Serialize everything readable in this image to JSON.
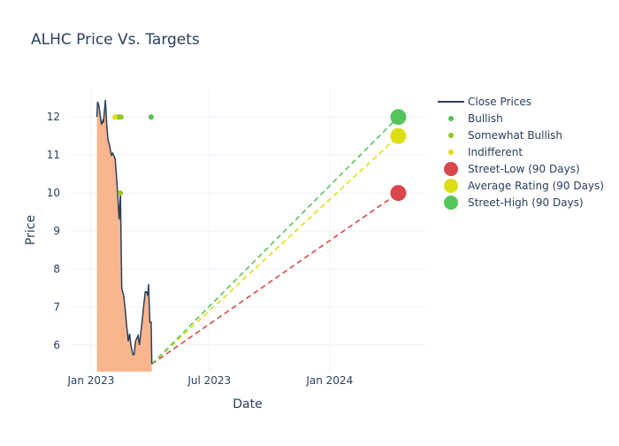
{
  "chart_data": {
    "type": "line",
    "title": "ALHC Price Vs. Targets",
    "xlabel": "Date",
    "ylabel": "Price",
    "xlim": [
      "2022-12-01",
      "2024-05-25"
    ],
    "ylim": [
      5.3,
      12.75
    ],
    "grid": true,
    "legend_position": "top-right",
    "x_ticks": [
      {
        "date": "2023-01-01",
        "label": "Jan 2023"
      },
      {
        "date": "2023-07-01",
        "label": "Jul 2023"
      },
      {
        "date": "2024-01-01",
        "label": "Jan 2024"
      }
    ],
    "y_ticks": [
      6,
      7,
      8,
      9,
      10,
      11,
      12
    ],
    "close_prices": {
      "name": "Close Prices",
      "color": "#2a3f5f",
      "fill_color": "#f9b68e",
      "points": [
        [
          "2023-01-10",
          12.0
        ],
        [
          "2023-01-11",
          12.4
        ],
        [
          "2023-01-13",
          12.3
        ],
        [
          "2023-01-17",
          11.8
        ],
        [
          "2023-01-19",
          11.9
        ],
        [
          "2023-01-20",
          11.85
        ],
        [
          "2023-01-23",
          12.45
        ],
        [
          "2023-01-25",
          11.8
        ],
        [
          "2023-01-27",
          11.4
        ],
        [
          "2023-01-30",
          11.2
        ],
        [
          "2023-02-01",
          11.0
        ],
        [
          "2023-02-03",
          11.05
        ],
        [
          "2023-02-07",
          10.9
        ],
        [
          "2023-02-10",
          10.2
        ],
        [
          "2023-02-13",
          9.3
        ],
        [
          "2023-02-15",
          10.0
        ],
        [
          "2023-02-17",
          7.5
        ],
        [
          "2023-02-20",
          7.3
        ],
        [
          "2023-02-22",
          7.0
        ],
        [
          "2023-02-24",
          6.6
        ],
        [
          "2023-02-27",
          6.1
        ],
        [
          "2023-03-01",
          6.3
        ],
        [
          "2023-03-03",
          6.0
        ],
        [
          "2023-03-06",
          5.75
        ],
        [
          "2023-03-08",
          5.75
        ],
        [
          "2023-03-10",
          6.1
        ],
        [
          "2023-03-14",
          6.25
        ],
        [
          "2023-03-16",
          6.0
        ],
        [
          "2023-03-20",
          6.6
        ],
        [
          "2023-03-23",
          7.1
        ],
        [
          "2023-03-25",
          7.4
        ],
        [
          "2023-03-27",
          7.4
        ],
        [
          "2023-03-29",
          7.3
        ],
        [
          "2023-03-30",
          7.6
        ],
        [
          "2023-04-01",
          6.6
        ],
        [
          "2023-04-03",
          6.6
        ],
        [
          "2023-04-04",
          5.5
        ]
      ]
    },
    "rating_series": [
      {
        "name": "Bullish",
        "color": "#57c24f",
        "points": [
          [
            "2023-02-12",
            12.0
          ],
          [
            "2023-04-03",
            12.0
          ]
        ]
      },
      {
        "name": "Somewhat Bullish",
        "color": "#94c71f",
        "points": [
          [
            "2023-02-16",
            12.0
          ],
          [
            "2023-02-15",
            10.0
          ]
        ]
      },
      {
        "name": "Indifferent",
        "color": "#e6d80a",
        "points": [
          [
            "2023-02-07",
            12.0
          ]
        ]
      }
    ],
    "targets": [
      {
        "name": "Street-Low (90 Days)",
        "color": "#d9474a",
        "date": "2024-04-15",
        "value": 10.0
      },
      {
        "name": "Average Rating (90 Days)",
        "color": "#dede14",
        "date": "2024-04-15",
        "value": 11.5
      },
      {
        "name": "Street-High (90 Days)",
        "color": "#57c45a",
        "date": "2024-04-15",
        "value": 12.0
      }
    ],
    "target_lines_start": {
      "date": "2023-04-04",
      "value": 5.5
    },
    "legend": [
      {
        "name": "Close Prices",
        "kind": "line",
        "color": "#2a3f5f"
      },
      {
        "name": "Bullish",
        "kind": "dot",
        "color": "#57c24f"
      },
      {
        "name": "Somewhat Bullish",
        "kind": "dot",
        "color": "#94c71f"
      },
      {
        "name": "Indifferent",
        "kind": "dot",
        "color": "#e6d80a"
      },
      {
        "name": "Street-Low (90 Days)",
        "kind": "bigdot",
        "color": "#d9474a"
      },
      {
        "name": "Average Rating (90 Days)",
        "kind": "bigdot",
        "color": "#dede14"
      },
      {
        "name": "Street-High (90 Days)",
        "kind": "bigdot",
        "color": "#57c45a"
      }
    ]
  }
}
